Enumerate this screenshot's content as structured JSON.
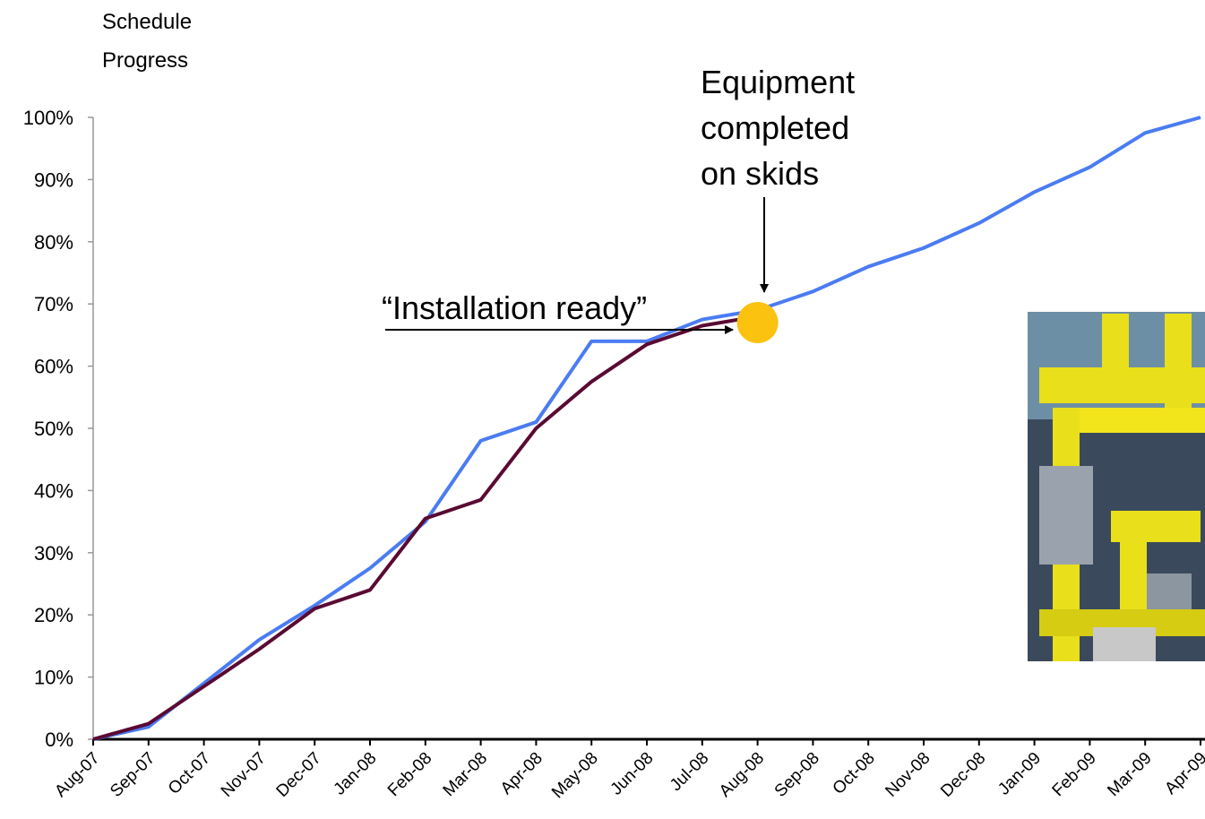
{
  "chart_data": {
    "type": "line",
    "ylabel_lines": [
      "Schedule",
      "Progress"
    ],
    "categories": [
      "Aug-07",
      "Sep-07",
      "Oct-07",
      "Nov-07",
      "Dec-07",
      "Jan-08",
      "Feb-08",
      "Mar-08",
      "Apr-08",
      "May-08",
      "Jun-08",
      "Jul-08",
      "Aug-08",
      "Sep-08",
      "Oct-08",
      "Nov-08",
      "Dec-08",
      "Jan-09",
      "Feb-09",
      "Mar-09",
      "Apr-09"
    ],
    "series": [
      {
        "color": "#4a7cf2",
        "values": [
          0,
          2,
          9,
          16,
          21.5,
          27.5,
          35,
          48,
          51,
          64,
          64,
          67.5,
          69,
          72,
          76,
          79,
          83,
          88,
          92,
          97.5,
          100
        ]
      },
      {
        "color": "#5a0a32",
        "values": [
          0,
          2.5,
          8.5,
          14.5,
          21,
          24,
          35.5,
          38.5,
          50,
          57.5,
          63.5,
          66.5,
          68,
          null,
          null,
          null,
          null,
          null,
          null,
          null,
          null
        ]
      }
    ],
    "ylim": [
      0,
      100
    ],
    "yticks": [
      {
        "value": 0,
        "label": "0%"
      },
      {
        "value": 10,
        "label": "10%"
      },
      {
        "value": 20,
        "label": "20%"
      },
      {
        "value": 30,
        "label": "30%"
      },
      {
        "value": 40,
        "label": "40%"
      },
      {
        "value": 50,
        "label": "50%"
      },
      {
        "value": 60,
        "label": "60%"
      },
      {
        "value": 70,
        "label": "70%"
      },
      {
        "value": 80,
        "label": "80%"
      },
      {
        "value": 90,
        "label": "90%"
      },
      {
        "value": 100,
        "label": "100%"
      }
    ],
    "highlight": {
      "category": 12,
      "value": 67,
      "color": "#fbc20f"
    },
    "annotations": [
      {
        "text_lines": [
          "Equipment",
          "completed",
          "on skids"
        ]
      },
      {
        "text": "“Installation ready”"
      }
    ]
  }
}
